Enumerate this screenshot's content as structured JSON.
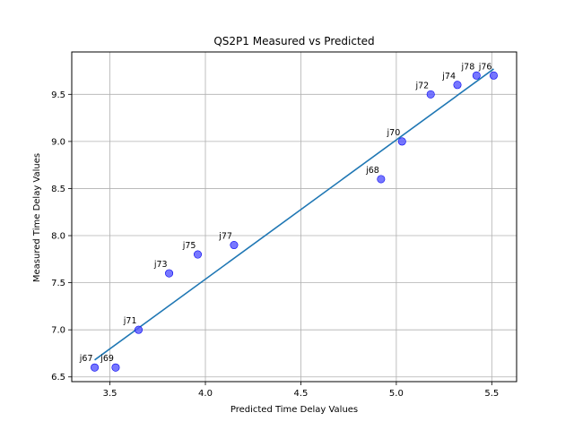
{
  "chart_data": {
    "type": "scatter",
    "title": "QS2P1 Measured vs Predicted",
    "xlabel": "Predicted Time Delay Values",
    "ylabel": "Measured Time Delay Values",
    "xlim": [
      3.3,
      5.63
    ],
    "ylim": [
      6.45,
      9.95
    ],
    "xticks": [
      3.5,
      4.0,
      4.5,
      5.0,
      5.5
    ],
    "xtick_labels": [
      "3.5",
      "4.0",
      "4.5",
      "5.0",
      "5.5"
    ],
    "yticks": [
      6.5,
      7.0,
      7.5,
      8.0,
      8.5,
      9.0,
      9.5
    ],
    "ytick_labels": [
      "6.5",
      "7.0",
      "7.5",
      "8.0",
      "8.5",
      "9.0",
      "9.5"
    ],
    "grid": true,
    "points": [
      {
        "label": "j67",
        "x": 3.42,
        "y": 6.6
      },
      {
        "label": "j69",
        "x": 3.53,
        "y": 6.6
      },
      {
        "label": "j71",
        "x": 3.65,
        "y": 7.0
      },
      {
        "label": "j73",
        "x": 3.81,
        "y": 7.6
      },
      {
        "label": "j75",
        "x": 3.96,
        "y": 7.8
      },
      {
        "label": "j77",
        "x": 4.15,
        "y": 7.9
      },
      {
        "label": "j68",
        "x": 4.92,
        "y": 8.6
      },
      {
        "label": "j70",
        "x": 5.03,
        "y": 9.0
      },
      {
        "label": "j72",
        "x": 5.18,
        "y": 9.5
      },
      {
        "label": "j74",
        "x": 5.32,
        "y": 9.6
      },
      {
        "label": "j78",
        "x": 5.42,
        "y": 9.7
      },
      {
        "label": "j76",
        "x": 5.51,
        "y": 9.7
      }
    ],
    "fit_line": {
      "x": [
        3.42,
        5.51
      ],
      "y": [
        6.68,
        9.77
      ]
    },
    "colors": {
      "points": "#5555ff",
      "point_edge": "#0000ee",
      "line": "#1f77b4",
      "grid": "#b0b0b0"
    }
  }
}
